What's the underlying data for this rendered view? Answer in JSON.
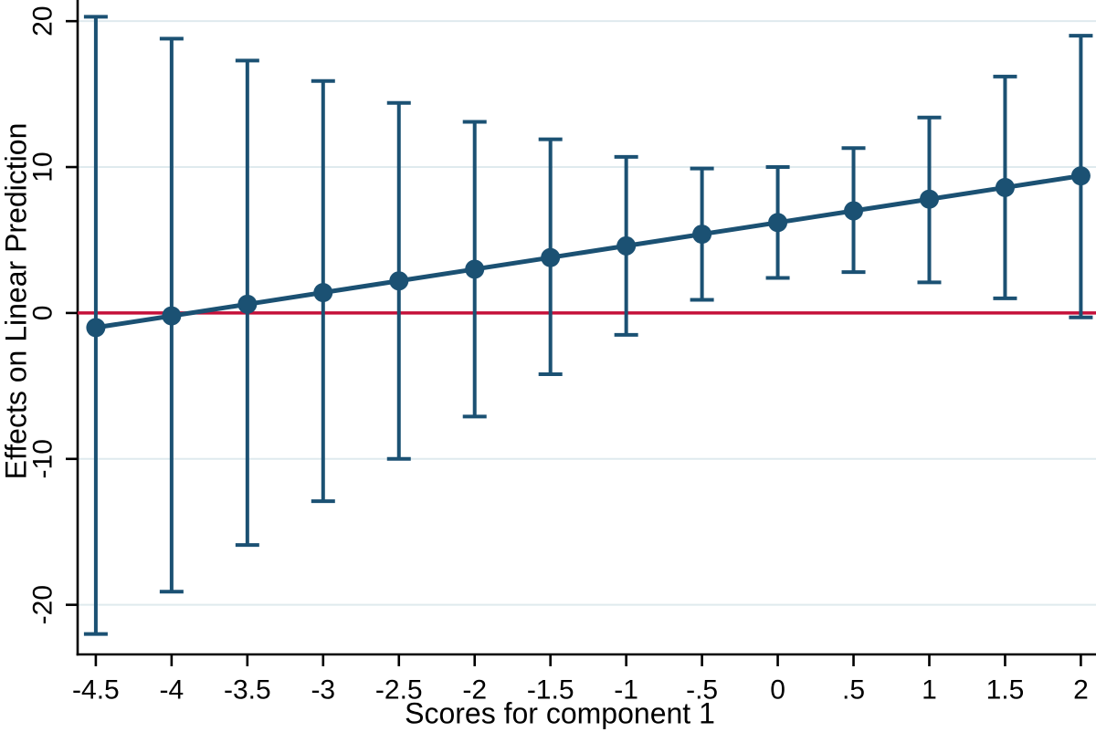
{
  "chart_data": {
    "type": "line",
    "title": "",
    "xlabel": "Scores for component 1",
    "ylabel": "Effects on Linear Prediction",
    "x": [
      -4.5,
      -4,
      -3.5,
      -3,
      -2.5,
      -2,
      -1.5,
      -1,
      -0.5,
      0,
      0.5,
      1,
      1.5,
      2
    ],
    "x_tick_labels": [
      "-4.5",
      "-4",
      "-3.5",
      "-3",
      "-2.5",
      "-2",
      "-1.5",
      "-1",
      "-.5",
      "0",
      ".5",
      "1",
      "1.5",
      "2"
    ],
    "y_ticks": [
      20,
      10,
      0,
      -10,
      -20
    ],
    "y_tick_labels": [
      "20",
      "10",
      "0",
      "-10",
      "-20"
    ],
    "xlim": [
      -4.62,
      2.1
    ],
    "ylim": [
      -23.4,
      21.45
    ],
    "grid": true,
    "legend": "none",
    "reference_line_y": 0,
    "series": [
      {
        "name": "Effects on Linear Prediction",
        "values": [
          -1.0,
          -0.2,
          0.6,
          1.4,
          2.2,
          3.0,
          3.8,
          4.6,
          5.4,
          6.2,
          7.0,
          7.8,
          8.6,
          9.4
        ],
        "ci_low": [
          -22.0,
          -19.1,
          -15.9,
          -12.9,
          -10.0,
          -7.1,
          -4.2,
          -1.5,
          0.9,
          2.4,
          2.8,
          2.1,
          1.0,
          -0.3
        ],
        "ci_high": [
          20.3,
          18.8,
          17.3,
          15.9,
          14.4,
          13.1,
          11.9,
          10.7,
          9.9,
          10.0,
          11.3,
          13.4,
          16.2,
          19.0
        ]
      }
    ],
    "colors": {
      "line": "#1b5173",
      "marker": "#1b5173",
      "reference_line": "#c51039",
      "gridline": "#dfeaee",
      "axis": "#000000"
    }
  }
}
